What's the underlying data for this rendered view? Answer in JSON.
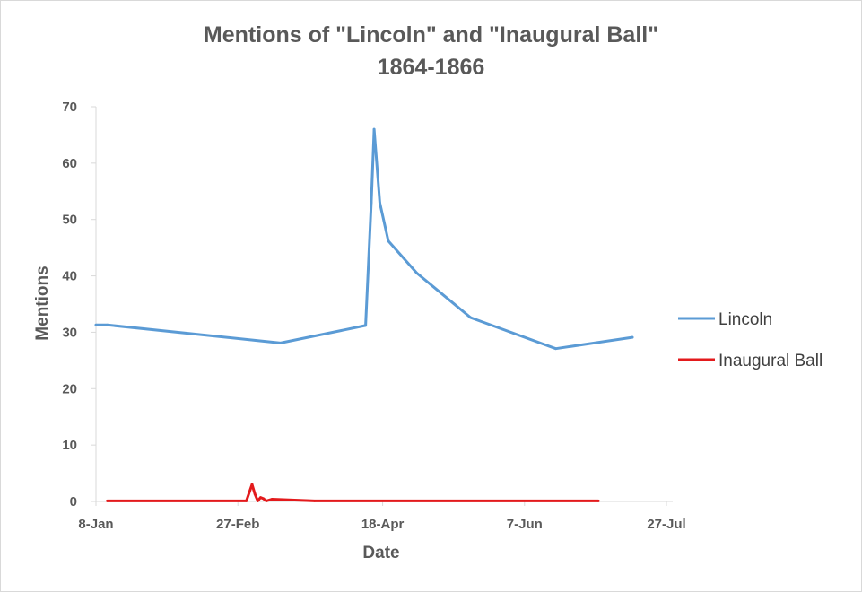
{
  "chart_data": {
    "type": "line",
    "title": "Mentions of \"Lincoln\" and \"Inaugural Ball\"",
    "subtitle": "1864-1866",
    "xlabel": "Date",
    "ylabel": "Mentions",
    "ylim": [
      0,
      70
    ],
    "yticks": [
      "0",
      "10",
      "20",
      "30",
      "40",
      "50",
      "60",
      "70"
    ],
    "xlim": [
      "2000-01-08",
      "2000-07-27"
    ],
    "xticks": [
      {
        "date": "2000-01-08",
        "label": "8-Jan"
      },
      {
        "date": "2000-02-27",
        "label": "27-Feb"
      },
      {
        "date": "2000-04-18",
        "label": "18-Apr"
      },
      {
        "date": "2000-06-07",
        "label": "7-Jun"
      },
      {
        "date": "2000-07-27",
        "label": "27-Jul"
      }
    ],
    "grid": false,
    "legend_position": "right",
    "series": [
      {
        "name": "Lincoln",
        "color": "#5b9bd5",
        "points": [
          {
            "x": "2000-01-08",
            "y": 31.3
          },
          {
            "x": "2000-01-12",
            "y": 31.3
          },
          {
            "x": "2000-03-13",
            "y": 28.1
          },
          {
            "x": "2000-04-12",
            "y": 31.2
          },
          {
            "x": "2000-04-14",
            "y": 53.0
          },
          {
            "x": "2000-04-15",
            "y": 66.0
          },
          {
            "x": "2000-04-17",
            "y": 53.0
          },
          {
            "x": "2000-04-20",
            "y": 46.2
          },
          {
            "x": "2000-04-30",
            "y": 40.5
          },
          {
            "x": "2000-05-19",
            "y": 32.6
          },
          {
            "x": "2000-06-18",
            "y": 27.1
          },
          {
            "x": "2000-07-15",
            "y": 29.1
          }
        ]
      },
      {
        "name": "Inaugural Ball",
        "color": "#e31a1c",
        "points": [
          {
            "x": "2000-01-12",
            "y": 0.1
          },
          {
            "x": "2000-03-01",
            "y": 0.1
          },
          {
            "x": "2000-03-03",
            "y": 3.0
          },
          {
            "x": "2000-03-04",
            "y": 1.3
          },
          {
            "x": "2000-03-05",
            "y": 0.1
          },
          {
            "x": "2000-03-06",
            "y": 0.7
          },
          {
            "x": "2000-03-07",
            "y": 0.5
          },
          {
            "x": "2000-03-08",
            "y": 0.1
          },
          {
            "x": "2000-03-10",
            "y": 0.4
          },
          {
            "x": "2000-03-25",
            "y": 0.1
          },
          {
            "x": "2000-07-03",
            "y": 0.1
          }
        ]
      }
    ]
  }
}
